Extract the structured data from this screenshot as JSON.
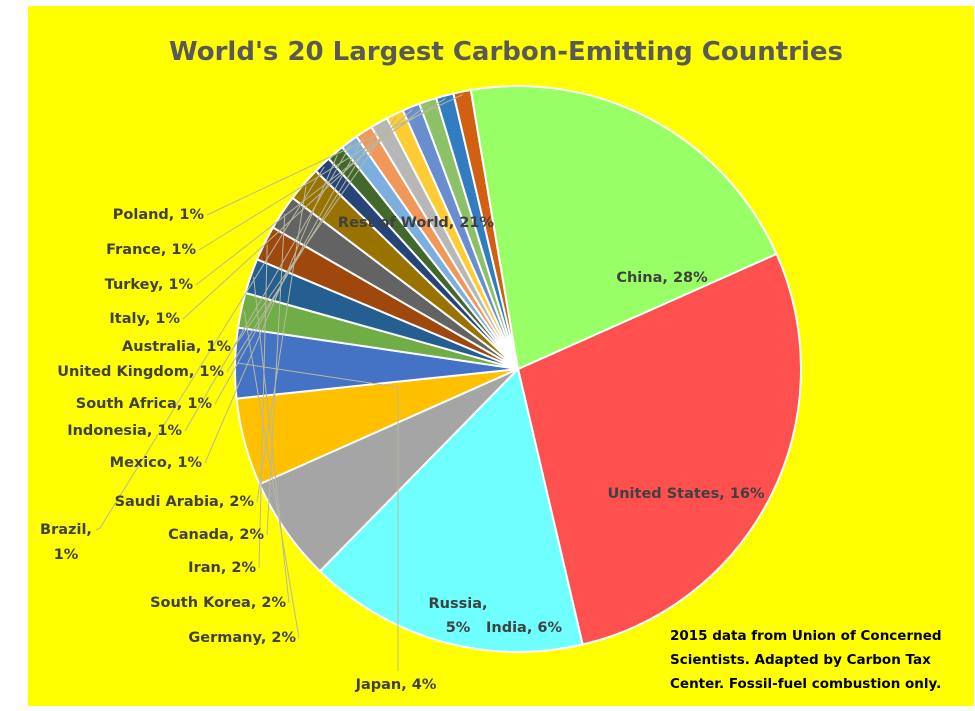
{
  "chart_data": {
    "type": "pie",
    "title": "World's 20 Largest Carbon-Emitting Countries",
    "source_note": [
      "2015 data from Union of Concerned",
      "Scientists. Adapted by Carbon Tax",
      "Center. Fossil-fuel combustion only."
    ],
    "background": "#ffff00",
    "slices": [
      {
        "name": "China",
        "value": 28,
        "label": "China, 28%",
        "color": "#ff5050"
      },
      {
        "name": "United States",
        "value": 16,
        "label": "United States, 16%",
        "color": "#6fffff"
      },
      {
        "name": "India",
        "value": 6,
        "label": "India, 6%",
        "color": "#a5a5a5"
      },
      {
        "name": "Russia",
        "value": 5,
        "label": "Russia, 5%",
        "color": "#ffc000"
      },
      {
        "name": "Japan",
        "value": 4,
        "label": "Japan, 4%",
        "color": "#4472c4"
      },
      {
        "name": "Germany",
        "value": 2,
        "label": "Germany, 2%",
        "color": "#70ad47"
      },
      {
        "name": "South Korea",
        "value": 2,
        "label": "South Korea, 2%",
        "color": "#255e91"
      },
      {
        "name": "Iran",
        "value": 2,
        "label": "Iran, 2%",
        "color": "#9e480e"
      },
      {
        "name": "Canada",
        "value": 2,
        "label": "Canada, 2%",
        "color": "#636363"
      },
      {
        "name": "Saudi Arabia",
        "value": 2,
        "label": "Saudi Arabia, 2%",
        "color": "#997300"
      },
      {
        "name": "Brazil",
        "value": 1,
        "label": "Brazil, 1%",
        "color": "#264478"
      },
      {
        "name": "Mexico",
        "value": 1,
        "label": "Mexico, 1%",
        "color": "#43682b"
      },
      {
        "name": "Indonesia",
        "value": 1,
        "label": "Indonesia, 1%",
        "color": "#7cafdd"
      },
      {
        "name": "South Africa",
        "value": 1,
        "label": "South Africa, 1%",
        "color": "#f1975a"
      },
      {
        "name": "United Kingdom",
        "value": 1,
        "label": "United Kingdom, 1%",
        "color": "#b7b7b7"
      },
      {
        "name": "Australia",
        "value": 1,
        "label": "Australia, 1%",
        "color": "#ffcd33"
      },
      {
        "name": "Italy",
        "value": 1,
        "label": "Italy, 1%",
        "color": "#698ed0"
      },
      {
        "name": "Turkey",
        "value": 1,
        "label": "Turkey, 1%",
        "color": "#8cc168"
      },
      {
        "name": "France",
        "value": 1,
        "label": "France, 1%",
        "color": "#327dc2"
      },
      {
        "name": "Poland",
        "value": 1,
        "label": "Poland, 1%",
        "color": "#d26012"
      },
      {
        "name": "Rest of World",
        "value": 21,
        "label": "Rest of World, 21%",
        "color": "#99ff66"
      }
    ]
  }
}
